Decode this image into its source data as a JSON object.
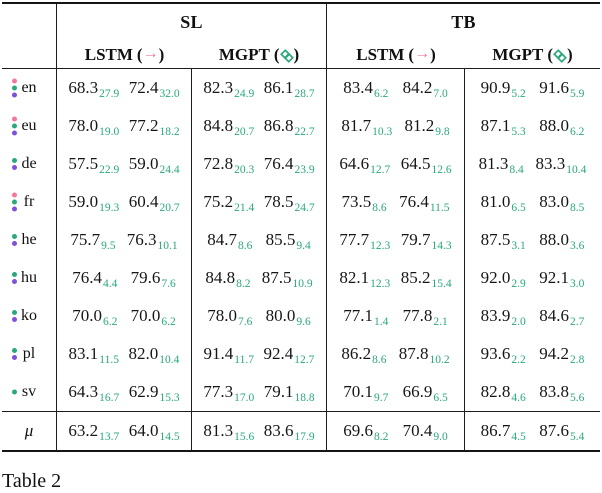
{
  "caption": "Table 2",
  "colors": {
    "pink": "#f2799c",
    "green": "#2aa87c",
    "purple": "#7e51d6"
  },
  "header": {
    "groups": [
      {
        "label": "SL"
      },
      {
        "label": "TB"
      }
    ],
    "lstm": "LSTM",
    "mgpt": "MGPT",
    "arrow": "→",
    "paren_open": "(",
    "paren_close": ")",
    "mgpt_icon": "mgpt-logo"
  },
  "rows": [
    {
      "lang": "en",
      "dots": [
        "pink",
        "green",
        "purple"
      ],
      "cells": [
        {
          "v": "68.3",
          "s": "27.9"
        },
        {
          "v": "72.4",
          "s": "32.0"
        },
        {
          "v": "82.3",
          "s": "24.9"
        },
        {
          "v": "86.1",
          "s": "28.7"
        },
        {
          "v": "83.4",
          "s": "6.2"
        },
        {
          "v": "84.2",
          "s": "7.0"
        },
        {
          "v": "90.9",
          "s": "5.2"
        },
        {
          "v": "91.6",
          "s": "5.9"
        }
      ]
    },
    {
      "lang": "eu",
      "dots": [
        "pink",
        "green",
        "purple"
      ],
      "cells": [
        {
          "v": "78.0",
          "s": "19.0"
        },
        {
          "v": "77.2",
          "s": "18.2"
        },
        {
          "v": "84.8",
          "s": "20.7"
        },
        {
          "v": "86.8",
          "s": "22.7"
        },
        {
          "v": "81.7",
          "s": "10.3"
        },
        {
          "v": "81.2",
          "s": "9.8"
        },
        {
          "v": "87.1",
          "s": "5.3"
        },
        {
          "v": "88.0",
          "s": "6.2"
        }
      ]
    },
    {
      "lang": "de",
      "dots": [
        "green",
        "purple"
      ],
      "cells": [
        {
          "v": "57.5",
          "s": "22.9"
        },
        {
          "v": "59.0",
          "s": "24.4"
        },
        {
          "v": "72.8",
          "s": "20.3"
        },
        {
          "v": "76.4",
          "s": "23.9"
        },
        {
          "v": "64.6",
          "s": "12.7"
        },
        {
          "v": "64.5",
          "s": "12.6"
        },
        {
          "v": "81.3",
          "s": "8.4"
        },
        {
          "v": "83.3",
          "s": "10.4"
        }
      ]
    },
    {
      "lang": "fr",
      "dots": [
        "pink",
        "green",
        "purple"
      ],
      "cells": [
        {
          "v": "59.0",
          "s": "19.3"
        },
        {
          "v": "60.4",
          "s": "20.7"
        },
        {
          "v": "75.2",
          "s": "21.4"
        },
        {
          "v": "78.5",
          "s": "24.7"
        },
        {
          "v": "73.5",
          "s": "8.6"
        },
        {
          "v": "76.4",
          "s": "11.5"
        },
        {
          "v": "81.0",
          "s": "6.5"
        },
        {
          "v": "83.0",
          "s": "8.5"
        }
      ]
    },
    {
      "lang": "he",
      "dots": [
        "green",
        "purple"
      ],
      "cells": [
        {
          "v": "75.7",
          "s": "9.5"
        },
        {
          "v": "76.3",
          "s": "10.1"
        },
        {
          "v": "84.7",
          "s": "8.6"
        },
        {
          "v": "85.5",
          "s": "9.4"
        },
        {
          "v": "77.7",
          "s": "12.3"
        },
        {
          "v": "79.7",
          "s": "14.3"
        },
        {
          "v": "87.5",
          "s": "3.1"
        },
        {
          "v": "88.0",
          "s": "3.6"
        }
      ]
    },
    {
      "lang": "hu",
      "dots": [
        "green",
        "purple"
      ],
      "cells": [
        {
          "v": "76.4",
          "s": "4.4"
        },
        {
          "v": "79.6",
          "s": "7.6"
        },
        {
          "v": "84.8",
          "s": "8.2"
        },
        {
          "v": "87.5",
          "s": "10.9"
        },
        {
          "v": "82.1",
          "s": "12.3"
        },
        {
          "v": "85.2",
          "s": "15.4"
        },
        {
          "v": "92.0",
          "s": "2.9"
        },
        {
          "v": "92.1",
          "s": "3.0"
        }
      ]
    },
    {
      "lang": "ko",
      "dots": [
        "green",
        "purple"
      ],
      "cells": [
        {
          "v": "70.0",
          "s": "6.2"
        },
        {
          "v": "70.0",
          "s": "6.2"
        },
        {
          "v": "78.0",
          "s": "7.6"
        },
        {
          "v": "80.0",
          "s": "9.6"
        },
        {
          "v": "77.1",
          "s": "1.4"
        },
        {
          "v": "77.8",
          "s": "2.1"
        },
        {
          "v": "83.9",
          "s": "2.0"
        },
        {
          "v": "84.6",
          "s": "2.7"
        }
      ]
    },
    {
      "lang": "pl",
      "dots": [
        "green",
        "purple"
      ],
      "cells": [
        {
          "v": "83.1",
          "s": "11.5"
        },
        {
          "v": "82.0",
          "s": "10.4"
        },
        {
          "v": "91.4",
          "s": "11.7"
        },
        {
          "v": "92.4",
          "s": "12.7"
        },
        {
          "v": "86.2",
          "s": "8.6"
        },
        {
          "v": "87.8",
          "s": "10.2"
        },
        {
          "v": "93.6",
          "s": "2.2"
        },
        {
          "v": "94.2",
          "s": "2.8"
        }
      ]
    },
    {
      "lang": "sv",
      "dots": [
        "green"
      ],
      "cells": [
        {
          "v": "64.3",
          "s": "16.7"
        },
        {
          "v": "62.9",
          "s": "15.3"
        },
        {
          "v": "77.3",
          "s": "17.0"
        },
        {
          "v": "79.1",
          "s": "18.8"
        },
        {
          "v": "70.1",
          "s": "9.7"
        },
        {
          "v": "66.9",
          "s": "6.5"
        },
        {
          "v": "82.8",
          "s": "4.6"
        },
        {
          "v": "83.8",
          "s": "5.6"
        }
      ]
    },
    {
      "lang": "μ",
      "dots": [],
      "cells": [
        {
          "v": "63.2",
          "s": "13.7"
        },
        {
          "v": "64.0",
          "s": "14.5"
        },
        {
          "v": "81.3",
          "s": "15.6"
        },
        {
          "v": "83.6",
          "s": "17.9"
        },
        {
          "v": "69.6",
          "s": "8.2"
        },
        {
          "v": "70.4",
          "s": "9.0"
        },
        {
          "v": "86.7",
          "s": "4.5"
        },
        {
          "v": "87.6",
          "s": "5.4"
        }
      ]
    }
  ]
}
